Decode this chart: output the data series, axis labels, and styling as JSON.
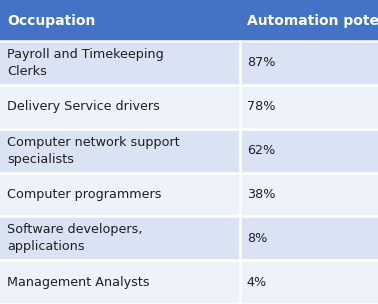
{
  "header": [
    "Occupation",
    "Automation potential"
  ],
  "rows": [
    [
      "Payroll and Timekeeping\nClerks",
      "87%"
    ],
    [
      "Delivery Service drivers",
      "78%"
    ],
    [
      "Computer network support\nspecialists",
      "62%"
    ],
    [
      "Computer programmers",
      "38%"
    ],
    [
      "Software developers,\napplications",
      "8%"
    ],
    [
      "Management Analysts",
      "4%"
    ]
  ],
  "header_bg": "#4472C4",
  "header_text_color": "#FFFFFF",
  "row_bg_odd": "#DAE3F3",
  "row_bg_even": "#EDF2FB",
  "text_color": "#1F1F1F",
  "col_split": 0.635,
  "fig_width": 3.78,
  "fig_height": 3.04,
  "font_size": 9.2,
  "header_font_size": 10.0,
  "border_color": "#FFFFFF"
}
